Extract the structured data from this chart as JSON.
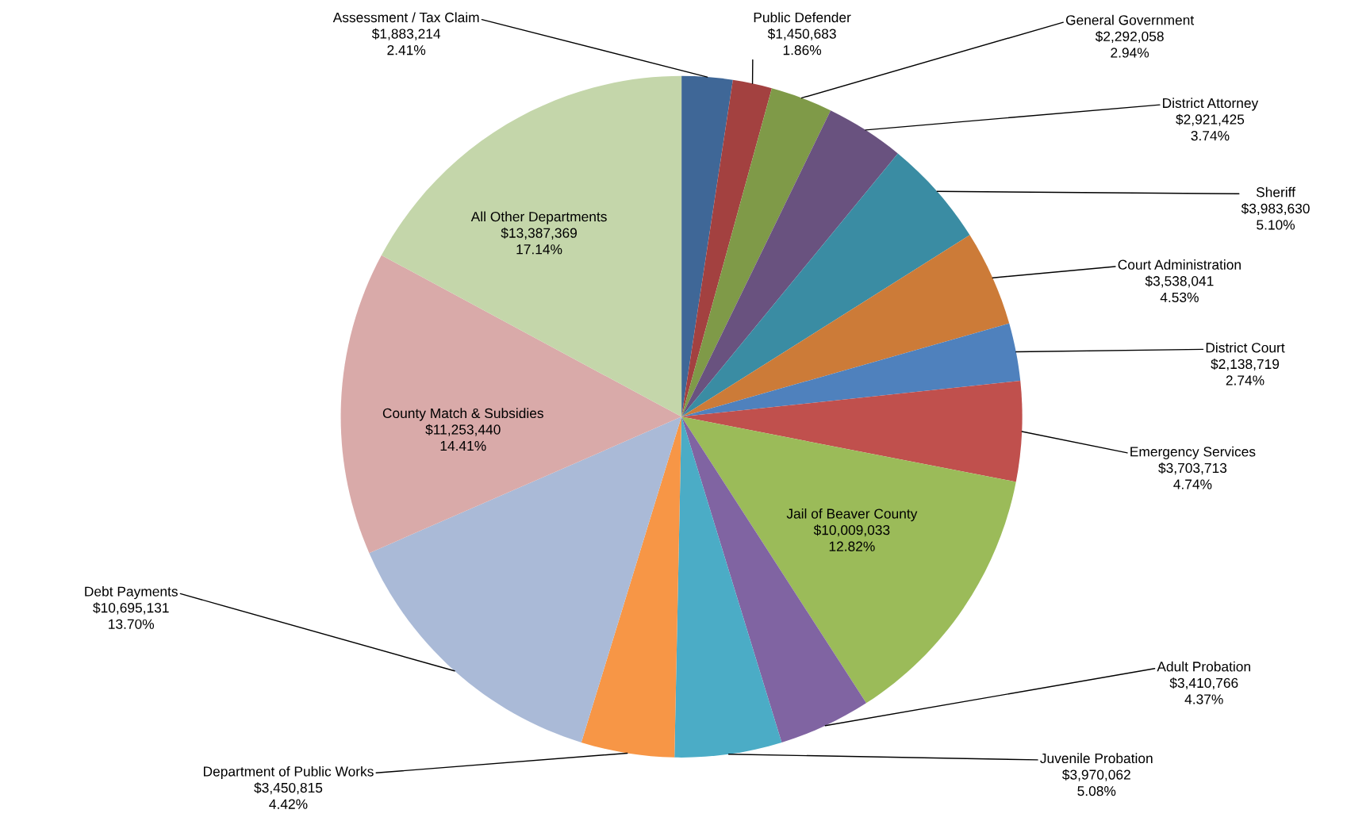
{
  "chart_data": {
    "type": "pie",
    "categories": [
      "Assessment / Tax Claim",
      "Public Defender",
      "General Government",
      "District Attorney",
      "Sheriff",
      "Court Administration",
      "District Court",
      "Emergency Services",
      "Jail of Beaver County",
      "Adult Probation",
      "Juvenile Probation",
      "Department of Public Works",
      "Debt Payments",
      "County Match & Subsidies",
      "All Other Departments"
    ],
    "values": [
      2.41,
      1.86,
      2.94,
      3.74,
      5.1,
      4.53,
      2.74,
      4.74,
      12.82,
      4.37,
      5.08,
      4.42,
      13.7,
      14.41,
      17.14
    ],
    "value_labels": [
      "$1,883,214\n2.41%",
      "$1,450,683\n1.86%",
      "$2,292,058\n2.94%",
      "$2,921,425\n3.74%",
      "$3,983,630\n5.10%",
      "$3,538,041\n4.53%",
      "$2,138,719\n2.74%",
      "$3,703,713\n4.74%",
      "$10,009,033\n12.82%",
      "$3,410,766\n4.37%",
      "$3,970,062\n5.08%",
      "$3,450,815\n4.42%",
      "$10,695,131\n13.70%",
      "$11,253,440\n14.41%",
      "$13,387,369\n17.14%"
    ],
    "colors": [
      "#3f6797",
      "#a34140",
      "#7f9a48",
      "#69527f",
      "#3a8ca3",
      "#cc7b38",
      "#4f81bd",
      "#c0504d",
      "#9bbb59",
      "#8064a2",
      "#4bacc6",
      "#f79646",
      "#aabad7",
      "#d9aaa9",
      "#c4d6aa"
    ],
    "legend": false
  }
}
